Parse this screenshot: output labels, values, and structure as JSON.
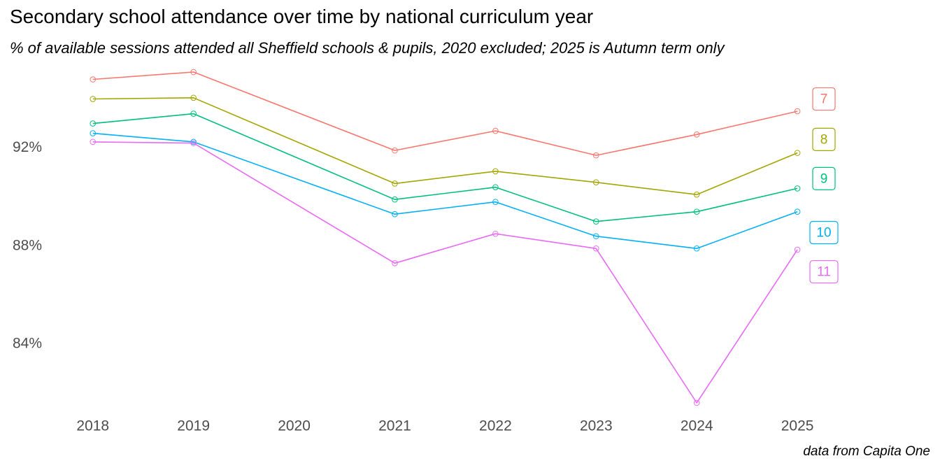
{
  "title": "Secondary school attendance over time by national curriculum year",
  "subtitle": "% of available sessions attended all Sheffield schools & pupils, 2020 excluded; 2025 is Autumn term only",
  "caption": "data from Capita One",
  "chart_data": {
    "type": "line",
    "title": "Secondary school attendance over time by national curriculum year",
    "subtitle": "% of available sessions attended all Sheffield schools & pupils, 2020 excluded; 2025 is Autumn term only",
    "xlabel": "",
    "ylabel": "",
    "x": [
      2018,
      2019,
      2021,
      2022,
      2023,
      2024,
      2025
    ],
    "x_ticks": [
      "2018",
      "2019",
      "2020",
      "2021",
      "2022",
      "2023",
      "2024",
      "2025"
    ],
    "y_ticks": [
      "84%",
      "88%",
      "92%"
    ],
    "y_tick_values": [
      84,
      88,
      92
    ],
    "ylim": [
      81.2,
      95.3
    ],
    "xlim": [
      2017.55,
      2026.25
    ],
    "grid": false,
    "legend": "none (series labelled at right end of lines)",
    "series": [
      {
        "name": "7",
        "color": "#F8766D",
        "values": [
          94.8,
          95.1,
          91.9,
          92.7,
          91.7,
          92.55,
          93.5
        ]
      },
      {
        "name": "8",
        "color": "#A3A500",
        "values": [
          94.0,
          94.05,
          90.55,
          91.05,
          90.6,
          90.1,
          91.8
        ]
      },
      {
        "name": "9",
        "color": "#00BF7D",
        "values": [
          93.0,
          93.4,
          89.9,
          90.4,
          89.0,
          89.4,
          90.35
        ]
      },
      {
        "name": "10",
        "color": "#00B0F6",
        "values": [
          92.6,
          92.25,
          89.3,
          89.8,
          88.4,
          87.9,
          89.4
        ]
      },
      {
        "name": "11",
        "color": "#E76BF3",
        "values": [
          92.25,
          92.2,
          87.3,
          88.5,
          87.9,
          81.6,
          87.85
        ]
      }
    ],
    "end_labels": [
      {
        "text": "7",
        "color": "#F8766D",
        "y": 94.0
      },
      {
        "text": "8",
        "color": "#A3A500",
        "y": 92.35
      },
      {
        "text": "9",
        "color": "#00BF7D",
        "y": 90.75
      },
      {
        "text": "10",
        "color": "#00B0F6",
        "y": 88.55
      },
      {
        "text": "11",
        "color": "#E76BF3",
        "y": 86.95
      }
    ]
  }
}
